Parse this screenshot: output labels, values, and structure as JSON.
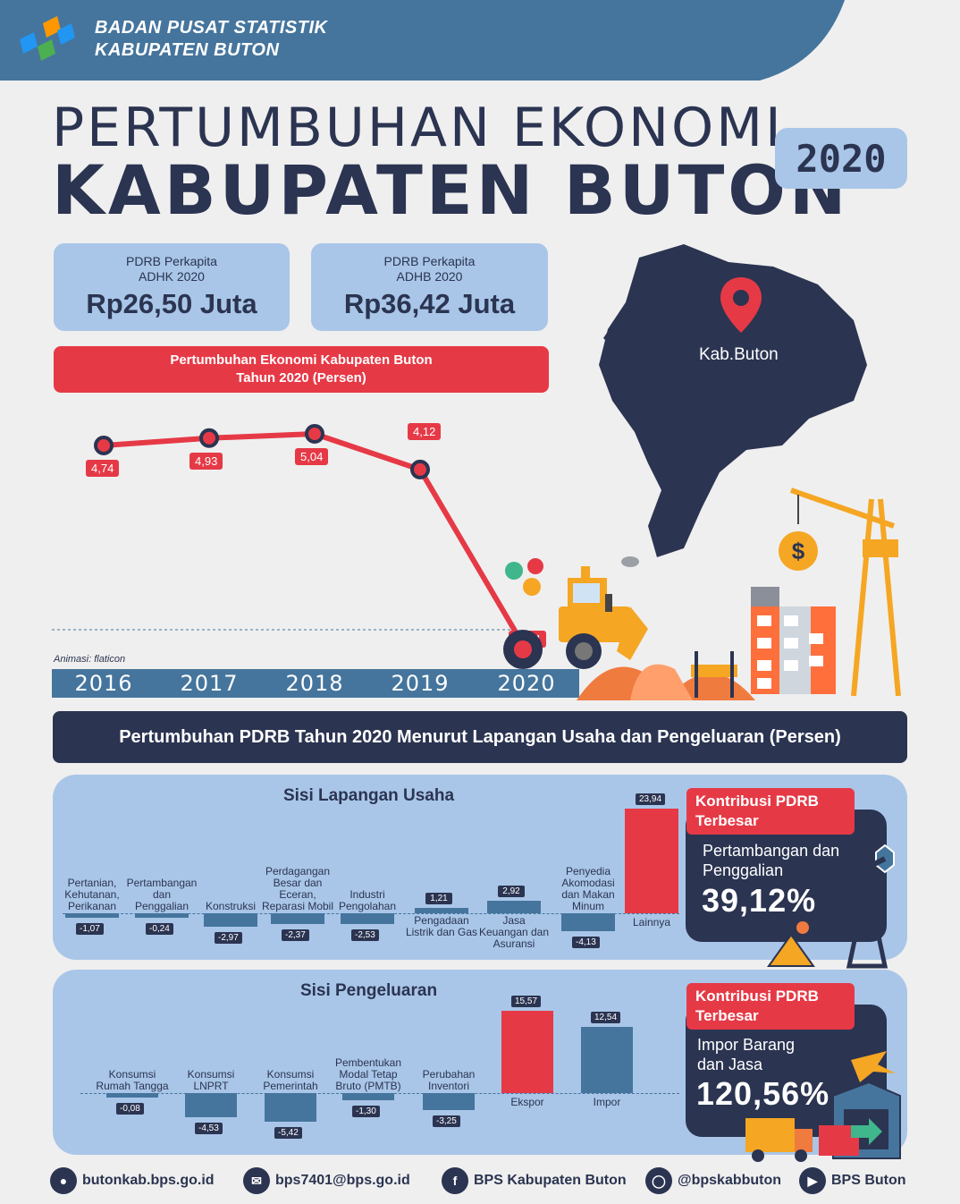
{
  "header": {
    "org_line1": "BADAN PUSAT STATISTIK",
    "org_line2": "KABUPATEN BUTON"
  },
  "title": {
    "line1": "PERTUMBUHAN EKONOMI",
    "line2": "KABUPATEN BUTON",
    "year": "2020"
  },
  "cards": [
    {
      "label1": "PDRB Perkapita",
      "label2": "ADHK 2020",
      "value": "Rp26,50 Juta"
    },
    {
      "label1": "PDRB Perkapita",
      "label2": "ADHB 2020",
      "value": "Rp36,42 Juta"
    }
  ],
  "growth_title": {
    "line1": "Pertumbuhan Ekonomi Kabupaten Buton",
    "line2": "Tahun 2020 (Persen)"
  },
  "map_label": "Kab.Buton",
  "credit": "Animasi: flaticon",
  "chart_data": [
    {
      "type": "line",
      "categories": [
        "2016",
        "2017",
        "2018",
        "2019",
        "2020"
      ],
      "values": [
        4.74,
        4.93,
        5.04,
        4.12,
        -0.54
      ],
      "labels": [
        "4,74",
        "4,93",
        "5,04",
        "4,12",
        "-0,54"
      ],
      "color": "#e63946"
    },
    {
      "type": "bar",
      "title": "Sisi Lapangan Usaha",
      "categories": [
        "Pertanian, Kehutanan, Perikanan",
        "Pertambangan dan Penggalian",
        "Konstruksi",
        "Perdagangan Besar dan Eceran, Reparasi Mobil",
        "Industri Pengolahan",
        "Pengadaan Listrik dan Gas",
        "Jasa Keuangan dan Asuransi",
        "Penyedia Akomodasi dan Makan Minum",
        "Lainnya"
      ],
      "values": [
        -1.07,
        -0.24,
        -2.97,
        -2.37,
        -2.53,
        1.21,
        2.92,
        -4.13,
        23.94
      ],
      "labels": [
        "-1,07",
        "-0,24",
        "-2,97",
        "-2,37",
        "-2,53",
        "1,21",
        "2,92",
        "-4,13",
        "23,94"
      ]
    },
    {
      "type": "bar",
      "title": "Sisi Pengeluaran",
      "categories": [
        "Konsumsi Rumah Tangga",
        "Konsumsi LNPRT",
        "Konsumsi Pemerintah",
        "Pembentukan Modal Tetap Bruto (PMTB)",
        "Perubahan Inventori",
        "Ekspor",
        "Impor"
      ],
      "values": [
        -0.08,
        -4.53,
        -5.42,
        -1.3,
        -3.25,
        15.57,
        12.54
      ],
      "labels": [
        "-0,08",
        "-4,53",
        "-5,42",
        "-1,30",
        "-3,25",
        "15,57",
        "12,54"
      ]
    }
  ],
  "section_title": "Pertumbuhan PDRB Tahun 2020 Menurut Lapangan Usaha dan Pengeluaran (Persen)",
  "panel1": {
    "title": "Sisi Lapangan Usaha",
    "labels": {
      "a": [
        "Pertanian,",
        "Kehutanan,",
        "Perikanan"
      ],
      "b": [
        "Pertambangan",
        "dan",
        "Penggalian"
      ],
      "c": [
        "Konstruksi"
      ],
      "d": [
        "Perdagangan",
        "Besar dan",
        "Eceran,",
        "Reparasi Mobil"
      ],
      "e": [
        "Industri",
        "Pengolahan"
      ],
      "f": [
        "Pengadaan",
        "Listrik dan Gas"
      ],
      "g": [
        "Jasa",
        "Keuangan dan",
        "Asuransi"
      ],
      "h": [
        "Penyedia",
        "Akomodasi",
        "dan Makan",
        "Minum"
      ],
      "i": [
        "Lainnya"
      ]
    }
  },
  "panel2": {
    "title": "Sisi Pengeluaran",
    "labels": {
      "a": [
        "Konsumsi",
        "Rumah Tangga"
      ],
      "b": [
        "Konsumsi",
        "LNPRT"
      ],
      "c": [
        "Konsumsi",
        "Pemerintah"
      ],
      "d": [
        "Pembentukan",
        "Modal Tetap",
        "Bruto (PMTB)"
      ],
      "e": [
        "Perubahan",
        "Inventori"
      ],
      "f": [
        "Ekspor"
      ],
      "g": [
        "Impor"
      ]
    }
  },
  "kontribusi1": {
    "tag1": "Kontribusi PDRB",
    "tag2": "Terbesar",
    "sub1": "Pertambangan dan",
    "sub2": "Penggalian",
    "value": "39,12%"
  },
  "kontribusi2": {
    "tag1": "Kontribusi PDRB",
    "tag2": "Terbesar",
    "sub1": "Impor Barang",
    "sub2": "dan Jasa",
    "value": "120,56%"
  },
  "footer": [
    {
      "icon": "globe-icon",
      "text": "butonkab.bps.go.id"
    },
    {
      "icon": "mail-icon",
      "text": "bps7401@bps.go.id"
    },
    {
      "icon": "facebook-icon",
      "text": "BPS Kabupaten Buton"
    },
    {
      "icon": "instagram-icon",
      "text": "@bpskabbuton"
    },
    {
      "icon": "youtube-icon",
      "text": "BPS Buton"
    }
  ],
  "colors": {
    "navy": "#2b3451",
    "light_blue": "#a9c6e8",
    "red": "#e63946",
    "steel": "#45759d"
  }
}
